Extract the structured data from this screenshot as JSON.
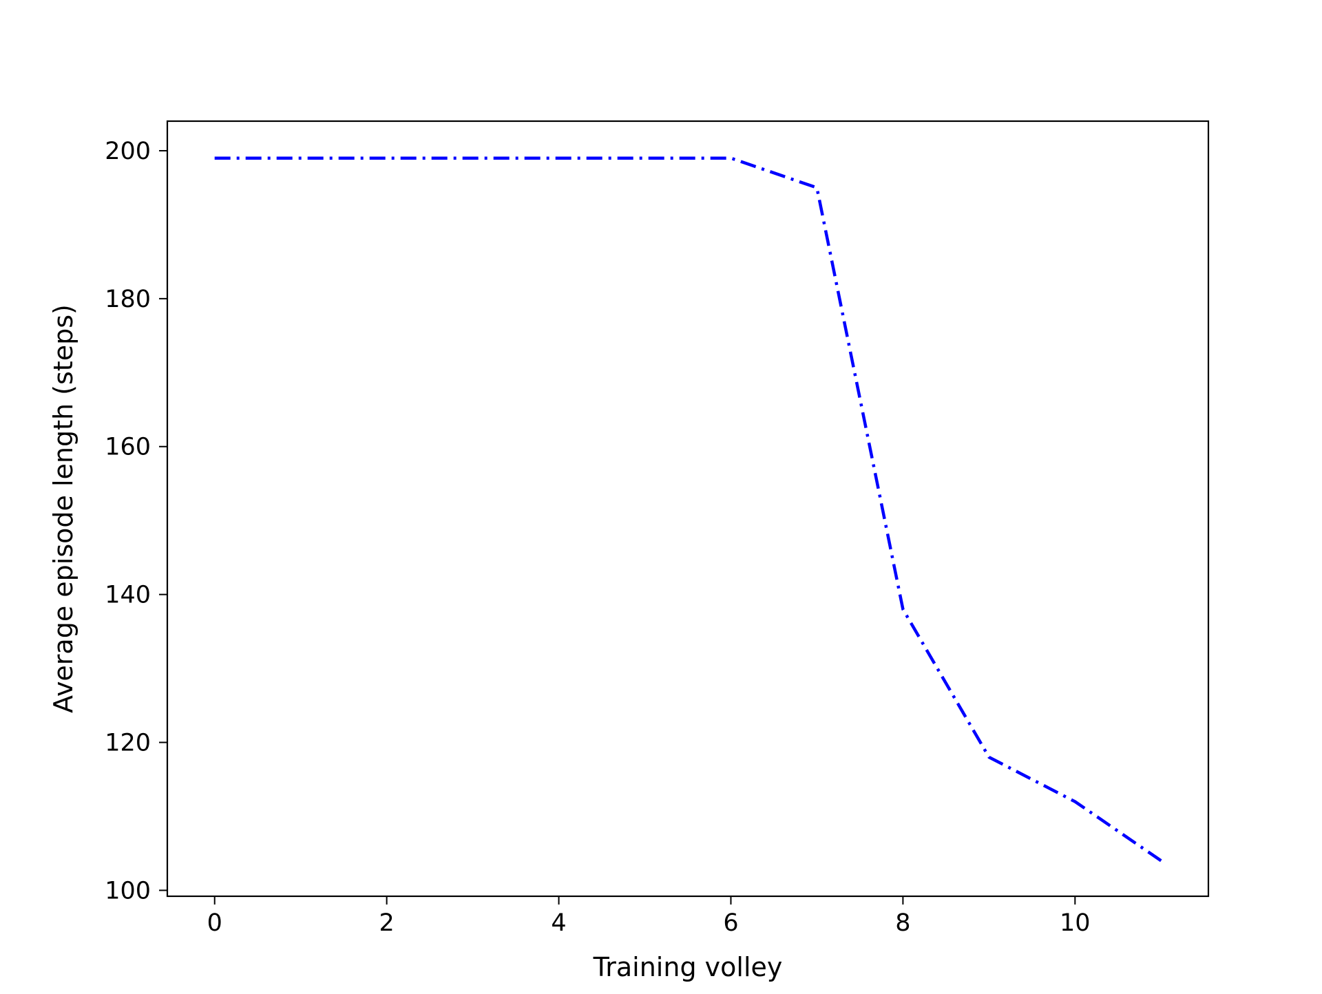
{
  "chart_data": {
    "type": "line",
    "title": "",
    "xlabel": "Training volley",
    "ylabel": "Average episode length (steps)",
    "xlim": [
      -0.55,
      11.55
    ],
    "ylim": [
      99.2,
      204.0
    ],
    "x_ticks": [
      0,
      2,
      4,
      6,
      8,
      10
    ],
    "y_ticks": [
      100,
      120,
      140,
      160,
      180,
      200
    ],
    "grid": false,
    "legend": "none",
    "line_style": "dash-dot",
    "series": [
      {
        "color": "#0000ff",
        "x": [
          0,
          1,
          2,
          3,
          4,
          5,
          6,
          7,
          8,
          9,
          10,
          11
        ],
        "values": [
          199,
          199,
          199,
          199,
          199,
          199,
          199,
          195,
          138,
          118,
          112,
          104
        ]
      }
    ]
  }
}
